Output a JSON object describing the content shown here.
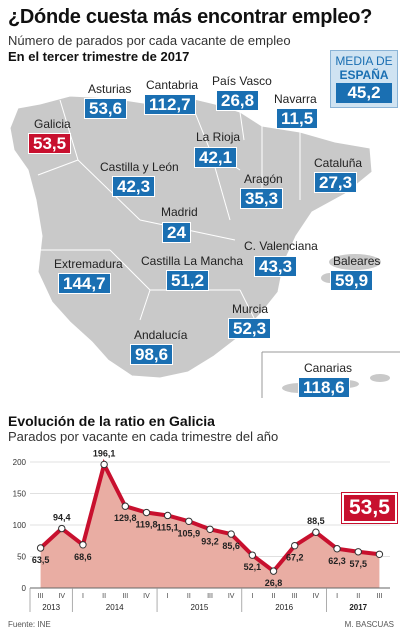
{
  "header": {
    "title": "¿Dónde cuesta más encontrar empleo?",
    "subtitle": "Número de parados por cada vacante de empleo",
    "period": "En el tercer trimestre de 2017"
  },
  "media": {
    "line1": "MEDIA DE",
    "line2": "ESPAÑA",
    "value": "45,2"
  },
  "regions": [
    {
      "name": "Asturias",
      "value": "53,6"
    },
    {
      "name": "Cantabria",
      "value": "112,7"
    },
    {
      "name": "País Vasco",
      "value": "26,8"
    },
    {
      "name": "Navarra",
      "value": "11,5"
    },
    {
      "name": "Galicia",
      "value": "53,5"
    },
    {
      "name": "La Rioja",
      "value": "42,1"
    },
    {
      "name": "Castilla y León",
      "value": "42,3"
    },
    {
      "name": "Cataluña",
      "value": "27,3"
    },
    {
      "name": "Aragón",
      "value": "35,3"
    },
    {
      "name": "Madrid",
      "value": "24"
    },
    {
      "name": "C. Valenciana",
      "value": "43,3"
    },
    {
      "name": "Extremadura",
      "value": "144,7"
    },
    {
      "name": "Castilla La Mancha",
      "value": "51,2"
    },
    {
      "name": "Baleares",
      "value": "59,9"
    },
    {
      "name": "Murcia",
      "value": "52,3"
    },
    {
      "name": "Andalucía",
      "value": "98,6"
    },
    {
      "name": "Canarias",
      "value": "118,6"
    }
  ],
  "colors": {
    "blue": "#1a6fb2",
    "red": "#c8102e",
    "map": "#c9c9c9",
    "area": "#e9ada3"
  },
  "chart_data": {
    "type": "area",
    "title": "Evolución de la ratio en Galicia",
    "subtitle": "Parados por vacante en cada trimestre del año",
    "categories": [
      "III",
      "IV",
      "I",
      "II",
      "III",
      "IV",
      "I",
      "II",
      "III",
      "IV",
      "I",
      "II",
      "III",
      "IV",
      "I",
      "II",
      "III"
    ],
    "years": [
      "2013",
      "2014",
      "2015",
      "2016",
      "2017"
    ],
    "year_spans": [
      [
        0,
        1
      ],
      [
        2,
        5
      ],
      [
        6,
        9
      ],
      [
        10,
        13
      ],
      [
        14,
        16
      ]
    ],
    "values": [
      63.5,
      94.4,
      68.6,
      196.1,
      129.8,
      119.8,
      115.1,
      105.9,
      93.2,
      85.6,
      52.1,
      26.8,
      67.2,
      88.5,
      62.3,
      57.5,
      53.5
    ],
    "labels": [
      "63,5",
      "94,4",
      "68,6",
      "196,1",
      "129,8",
      "119,8",
      "115,1",
      "105,9",
      "93,2",
      "85,6",
      "52,1",
      "26,8",
      "67,2",
      "88,5",
      "62,3",
      "57,5",
      "53,5"
    ],
    "yticks": [
      "0",
      "50",
      "100",
      "150",
      "200"
    ],
    "ylim": [
      0,
      200
    ],
    "grid": true,
    "highlight": "53,5"
  },
  "footer": {
    "source": "Fuente: INE",
    "author": "M. BASCUAS"
  }
}
